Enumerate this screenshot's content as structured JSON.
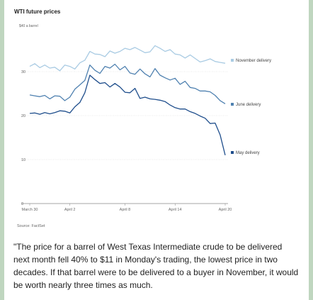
{
  "chart_data": {
    "type": "line",
    "title": "WTI future prices",
    "unit_label": "$40 a barrel",
    "source": "Source: FactSet",
    "ylim": [
      0,
      40
    ],
    "yticks": [
      0,
      10,
      20,
      30
    ],
    "ytick_labels": [
      "0",
      "10",
      "20",
      "30"
    ],
    "x_labels": [
      "March 30",
      "April 2",
      "April 8",
      "April 14",
      "April 20"
    ],
    "series": [
      {
        "name": "November delivery",
        "color": "#a9cbe3",
        "values": [
          31.2,
          31.8,
          30.9,
          31.5,
          30.8,
          31.0,
          30.2,
          31.5,
          31.2,
          30.6,
          32.0,
          32.6,
          34.6,
          34.0,
          33.9,
          33.4,
          34.7,
          34.2,
          34.6,
          35.3,
          35.0,
          35.5,
          34.9,
          34.3,
          34.5,
          35.9,
          35.3,
          34.6,
          35.0,
          34.0,
          33.8,
          33.1,
          33.8,
          33.0,
          32.2,
          32.5,
          32.9,
          32.3,
          32.1,
          31.9
        ]
      },
      {
        "name": "June delivery",
        "color": "#4f81b0",
        "values": [
          24.7,
          24.5,
          24.3,
          24.6,
          23.8,
          24.5,
          24.4,
          23.4,
          24.2,
          26.0,
          27.0,
          28.0,
          31.5,
          30.3,
          29.6,
          31.2,
          30.8,
          31.7,
          30.4,
          31.2,
          29.7,
          29.4,
          30.6,
          29.5,
          28.8,
          30.7,
          29.2,
          28.6,
          28.1,
          28.5,
          27.1,
          27.8,
          26.4,
          26.2,
          25.6,
          25.6,
          25.4,
          24.6,
          23.4,
          22.7
        ]
      },
      {
        "name": "May delivery",
        "color": "#1f4e8c",
        "values": [
          20.5,
          20.6,
          20.3,
          20.7,
          20.4,
          20.7,
          21.1,
          21.0,
          20.6,
          22.0,
          23.0,
          25.2,
          29.2,
          28.2,
          27.3,
          27.5,
          26.5,
          27.3,
          26.5,
          25.3,
          25.2,
          26.2,
          23.9,
          24.2,
          23.8,
          23.7,
          23.5,
          23.2,
          22.4,
          21.8,
          21.5,
          21.5,
          20.9,
          20.5,
          19.9,
          19.4,
          18.2,
          18.3,
          15.6,
          11.0
        ]
      }
    ]
  },
  "quote": "\"The price for a barrel of West Texas Intermediate crude to be delivered next month fell 40% to $11 in Monday's trading, the lowest price in two decades. If that barrel were to be delivered to a buyer in November, it would be worth nearly three times as much."
}
